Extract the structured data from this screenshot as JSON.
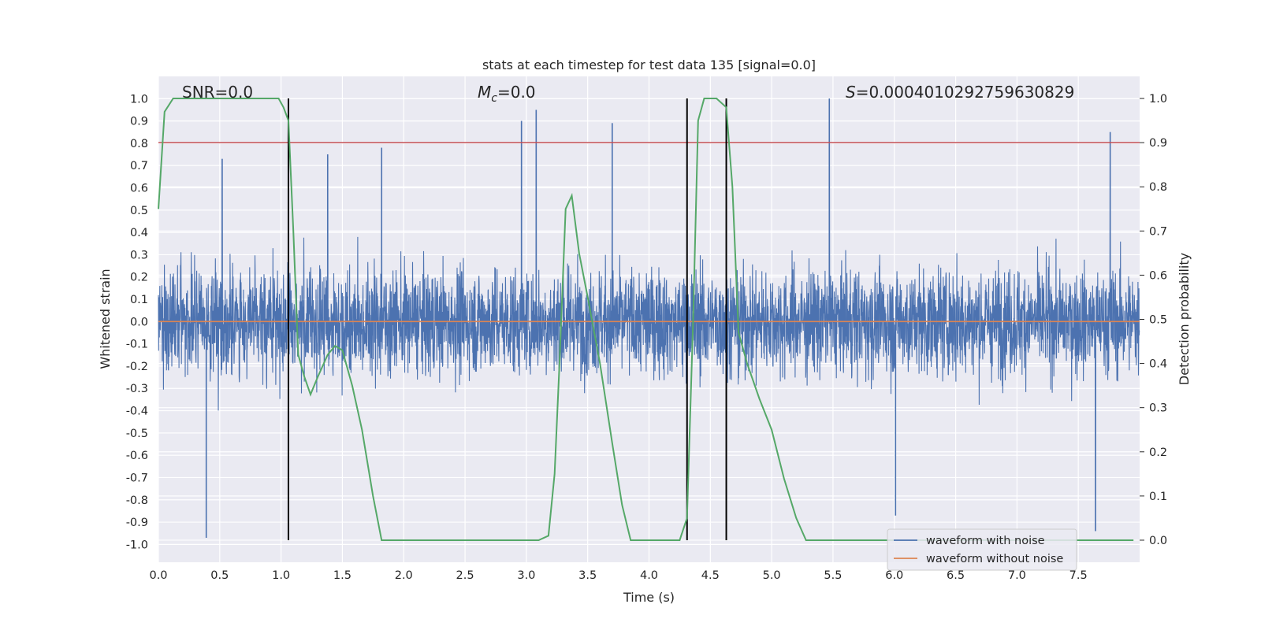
{
  "chart_data": {
    "type": "line",
    "title": "stats at each timestep for test data 135 [signal=0.0]",
    "xlabel": "Time (s)",
    "ylabel": "Whitened strain",
    "ylabel_right": "Detection probability",
    "xlim": [
      0.0,
      8.0
    ],
    "ylim": [
      -1.08,
      1.1
    ],
    "ylim_right": [
      -0.05,
      1.05
    ],
    "x_ticks": [
      "0.0",
      "0.5",
      "1.0",
      "1.5",
      "2.0",
      "2.5",
      "3.0",
      "3.5",
      "4.0",
      "4.5",
      "5.0",
      "5.5",
      "6.0",
      "6.5",
      "7.0",
      "7.5"
    ],
    "y_ticks": [
      "1.0",
      "0.9",
      "0.8",
      "0.7",
      "0.6",
      "0.5",
      "0.4",
      "0.3",
      "0.2",
      "0.1",
      "0.0",
      "-0.1",
      "-0.2",
      "-0.3",
      "-0.4",
      "-0.5",
      "-0.6",
      "-0.7",
      "-0.8",
      "-0.9",
      "-1.0"
    ],
    "y_ticks_right": [
      "1.0",
      "0.9",
      "0.8",
      "0.7",
      "0.6",
      "0.5",
      "0.4",
      "0.3",
      "0.2",
      "0.1",
      "0.0"
    ],
    "grid": true,
    "legend_position": "lower-right",
    "annotations": {
      "snr": "SNR=0.0",
      "mc_symbol": "M",
      "mc_sub": "c",
      "mc_value": "=0.0",
      "s_symbol": "S",
      "s_value": "=0.0004010292759630829"
    },
    "colors": {
      "noise": "#4c72b0",
      "clean": "#dd8452",
      "prob": "#55a868",
      "threshold": "#c44e52",
      "vline": "#000000",
      "background": "#eaeaf2"
    },
    "threshold_right": 0.9,
    "vlines_x": [
      1.06,
      4.31,
      4.63
    ],
    "series": [
      {
        "name": "waveform with noise",
        "axis": "left",
        "sampling": "dense noise, approx. 4096 samples over 0-8 s, amplitude mostly within -0.7 to 0.6, peaks near 1.0",
        "peak_samples": [
          [
            0.39,
            -0.97
          ],
          [
            0.52,
            0.73
          ],
          [
            1.38,
            0.75
          ],
          [
            1.82,
            0.78
          ],
          [
            2.96,
            0.9
          ],
          [
            3.08,
            0.95
          ],
          [
            3.7,
            0.89
          ],
          [
            5.47,
            1.0
          ],
          [
            6.01,
            -0.87
          ],
          [
            7.76,
            0.85
          ],
          [
            7.64,
            -0.94
          ]
        ]
      },
      {
        "name": "waveform without noise",
        "axis": "left",
        "x": [
          0.0,
          8.0
        ],
        "y": [
          0.0,
          0.0
        ]
      },
      {
        "name": "detection probability",
        "axis": "right",
        "x": [
          0.0,
          0.05,
          0.12,
          0.25,
          0.5,
          0.75,
          0.98,
          1.02,
          1.06,
          1.1,
          1.14,
          1.19,
          1.24,
          1.3,
          1.38,
          1.44,
          1.5,
          1.58,
          1.66,
          1.75,
          1.82,
          1.9,
          2.2,
          2.6,
          2.9,
          3.1,
          3.18,
          3.23,
          3.27,
          3.32,
          3.37,
          3.43,
          3.5,
          3.6,
          3.7,
          3.78,
          3.85,
          3.95,
          4.1,
          4.25,
          4.31,
          4.36,
          4.4,
          4.45,
          4.55,
          4.63,
          4.68,
          4.73,
          4.8,
          4.9,
          5.0,
          5.1,
          5.2,
          5.28,
          5.6,
          6.5,
          7.5,
          7.95
        ],
        "y": [
          0.75,
          0.97,
          1.0,
          1.0,
          1.0,
          1.0,
          1.0,
          0.98,
          0.95,
          0.7,
          0.42,
          0.37,
          0.33,
          0.37,
          0.42,
          0.44,
          0.43,
          0.35,
          0.25,
          0.1,
          0.0,
          0.0,
          0.0,
          0.0,
          0.0,
          0.0,
          0.01,
          0.15,
          0.4,
          0.75,
          0.78,
          0.65,
          0.55,
          0.4,
          0.22,
          0.08,
          0.0,
          0.0,
          0.0,
          0.0,
          0.05,
          0.5,
          0.95,
          1.0,
          1.0,
          0.98,
          0.8,
          0.47,
          0.4,
          0.32,
          0.25,
          0.14,
          0.05,
          0.0,
          0.0,
          0.0,
          0.0,
          0.0
        ]
      }
    ]
  }
}
